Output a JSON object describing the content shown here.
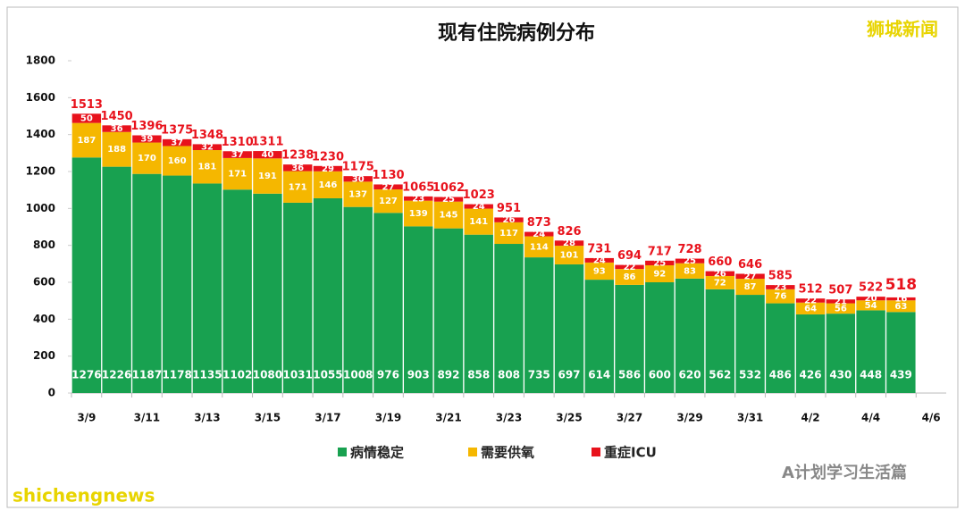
{
  "chart_data": {
    "type": "stacked_bar",
    "title": "现有住院病例分布",
    "watermark": "狮城新闻",
    "footer_left": "shichengnews",
    "footer_right": "A计划学习生活篇",
    "categories": [
      "3/9",
      null,
      "3/11",
      null,
      "3/13",
      null,
      "3/15",
      null,
      "3/17",
      null,
      "3/19",
      null,
      "3/21",
      null,
      "3/23",
      null,
      "3/25",
      null,
      "3/27",
      null,
      "3/29",
      null,
      "3/31",
      null,
      "4/2",
      null,
      "4/4",
      null,
      "4/6"
    ],
    "series": [
      {
        "name": "病情稳定",
        "color": "#18a150",
        "values": [
          1276,
          1226,
          1187,
          1178,
          1135,
          1102,
          1080,
          1031,
          1055,
          1008,
          976,
          903,
          892,
          858,
          808,
          735,
          697,
          614,
          586,
          600,
          620,
          562,
          532,
          486,
          426,
          430,
          448,
          439,
          null
        ]
      },
      {
        "name": "需要供氧",
        "color": "#f5b700",
        "values": [
          187,
          188,
          170,
          160,
          181,
          171,
          191,
          171,
          146,
          137,
          127,
          139,
          145,
          141,
          117,
          114,
          101,
          93,
          86,
          92,
          83,
          72,
          87,
          76,
          64,
          56,
          54,
          63,
          null
        ]
      },
      {
        "name": "重症ICU",
        "color": "#e8121c",
        "values": [
          50,
          36,
          39,
          37,
          32,
          37,
          40,
          36,
          29,
          30,
          27,
          23,
          25,
          24,
          26,
          24,
          28,
          24,
          22,
          25,
          25,
          26,
          27,
          23,
          22,
          21,
          20,
          16,
          null
        ]
      }
    ],
    "totals": [
      1513,
      1450,
      1396,
      1375,
      1348,
      1310,
      1311,
      1238,
      1230,
      1175,
      1130,
      1065,
      1062,
      1023,
      951,
      873,
      826,
      731,
      694,
      717,
      728,
      660,
      646,
      585,
      512,
      507,
      522,
      518,
      null
    ],
    "ylim": [
      0,
      1800
    ],
    "yticks": [
      0,
      200,
      400,
      600,
      800,
      1000,
      1200,
      1400,
      1600,
      1800
    ],
    "grid": false,
    "legend": "bottom"
  }
}
